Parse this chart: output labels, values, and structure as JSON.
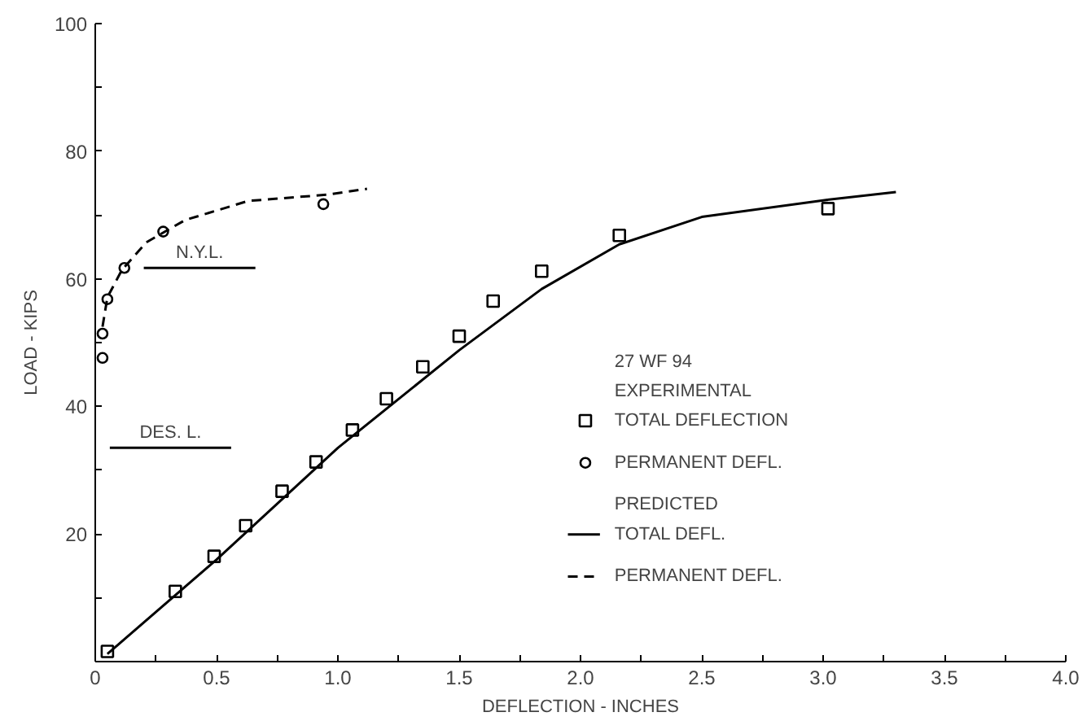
{
  "chart_data": {
    "type": "scatter",
    "xlabel": "DEFLECTION - INCHES",
    "ylabel": "LOAD - KIPS",
    "legend_title": "27 WF 94",
    "legend": "center",
    "grid": false,
    "xlim": [
      0,
      4
    ],
    "ylim": [
      0,
      100
    ],
    "xticks": [
      0,
      {
        "value": 0.25,
        "label": null
      },
      {
        "value": 0.5,
        "label": "0.5"
      },
      {
        "value": 0.75,
        "label": null
      },
      {
        "value": 1,
        "label": "1.0"
      },
      {
        "value": 1.25,
        "label": null
      },
      {
        "value": 1.5,
        "label": "1.5"
      },
      {
        "value": 1.75,
        "label": null
      },
      {
        "value": 2,
        "label": "2.0"
      },
      {
        "value": 2.25,
        "label": null
      },
      {
        "value": 2.5,
        "label": "2.5"
      },
      {
        "value": 2.75,
        "label": null
      },
      {
        "value": 3,
        "label": "3.0"
      },
      {
        "value": 3.25,
        "label": null
      },
      {
        "value": 3.5,
        "label": "3.5"
      },
      {
        "value": 3.75,
        "label": null
      },
      {
        "value": 4,
        "label": "4.0"
      }
    ],
    "yticks": [
      {
        "value": 0,
        "label": null
      },
      {
        "value": 10,
        "label": null
      },
      20,
      {
        "value": 30,
        "label": null
      },
      40,
      {
        "value": 50,
        "label": null
      },
      60,
      {
        "value": 70,
        "label": null
      },
      80,
      {
        "value": 90,
        "label": null
      },
      100
    ],
    "annotations": [
      "EXPERIMENTAL",
      "PREDICTED"
    ],
    "ref_lines": [
      {
        "axis": "y",
        "value": 61.7,
        "label": "N.Y.L."
      },
      {
        "axis": "y",
        "value": 33.5,
        "label": "DES. L."
      }
    ],
    "series": [
      {
        "name": "TOTAL DEFLECTION",
        "marker": "square",
        "color": "#000000",
        "x": [
          0.05,
          0.33,
          0.49,
          0.62,
          0.77,
          0.91,
          1.06,
          1.2,
          1.35,
          1.5,
          1.64,
          1.84,
          2.16,
          3.02
        ],
        "values": [
          1.6,
          11,
          16.5,
          21.3,
          26.7,
          31.3,
          36.3,
          41.2,
          46.2,
          51,
          56.5,
          61.2,
          66.8,
          71
        ]
      },
      {
        "name": "PERMANENT DEFL.",
        "marker": "circle",
        "color": "#000000",
        "x": [
          0.03,
          0.03,
          0.05,
          0.12,
          0.28,
          0.94
        ],
        "values": [
          47.6,
          51.4,
          56.8,
          61.7,
          67.4,
          71.7
        ]
      },
      {
        "name": "TOTAL DEFL.",
        "type": "line",
        "line_style": "solid",
        "color": "#000000",
        "x": [
          0.05,
          0.5,
          1.0,
          1.5,
          1.84,
          2.16,
          2.5,
          3.0,
          3.3
        ],
        "values": [
          1.2,
          16,
          33.5,
          48.8,
          58.4,
          65.4,
          69.7,
          72.3,
          73.6
        ]
      },
      {
        "name": "PERMANENT DEFL.",
        "type": "line",
        "line_style": "dashed",
        "color": "#000000",
        "x": [
          0.03,
          0.05,
          0.11,
          0.21,
          0.37,
          0.63,
          0.96,
          1.12
        ],
        "values": [
          52.5,
          57.1,
          61.4,
          65.7,
          69.2,
          72.2,
          73.2,
          74.1
        ]
      }
    ]
  }
}
